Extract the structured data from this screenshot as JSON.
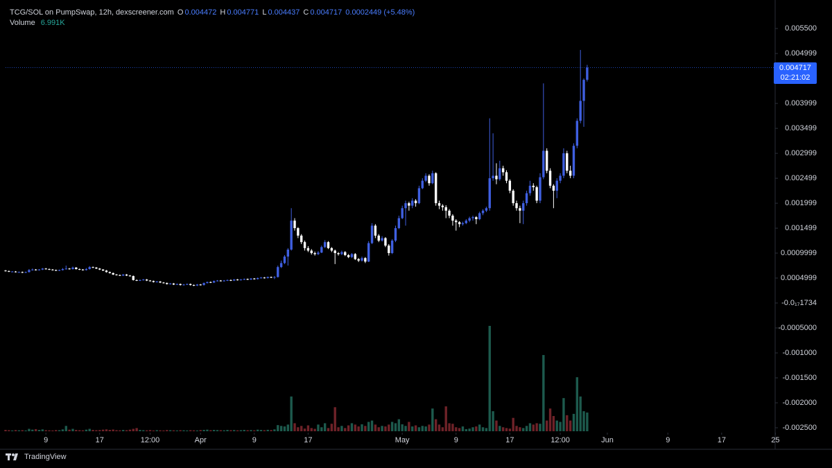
{
  "header": {
    "title": "TCG/SOL on PumpSwap, 12h, dexscreener.com",
    "o_label": "O",
    "open": "0.004472",
    "h_label": "H",
    "high": "0.004771",
    "l_label": "L",
    "low": "0.004437",
    "c_label": "C",
    "close": "0.004717",
    "change": "0.0002449 (+5.48%)",
    "volume_label": "Volume",
    "volume": "6.991K",
    "countdown": "02:21:02",
    "brand": "TradingView"
  },
  "chart_data": {
    "type": "candlestick",
    "up_color": "#3f5fe0",
    "down_color": "#ffffff",
    "volume_up_color": "#1d5a4d",
    "volume_down_color": "#6e2228",
    "xlim": [
      0,
      228.5
    ],
    "xticks": [
      {
        "value": 12,
        "label": "9"
      },
      {
        "value": 28,
        "label": "17"
      },
      {
        "value": 43,
        "label": "12:00"
      },
      {
        "value": 58,
        "label": "Apr"
      },
      {
        "value": 74,
        "label": "9"
      },
      {
        "value": 90,
        "label": "17"
      },
      {
        "value": 118,
        "label": "May"
      },
      {
        "value": 134,
        "label": "9"
      },
      {
        "value": 150,
        "label": "17"
      },
      {
        "value": 165,
        "label": "12:00"
      },
      {
        "value": 179,
        "label": "Jun"
      },
      {
        "value": 197,
        "label": "9"
      },
      {
        "value": 213,
        "label": "17"
      },
      {
        "value": 229,
        "label": "25"
      }
    ],
    "ylim": [
      -0.00257,
      0.00596
    ],
    "yticks": [
      {
        "value": 0.0055,
        "label": "0.005500"
      },
      0.004999,
      0.003999,
      0.003499,
      0.002999,
      0.002499,
      0.001999,
      0.001499,
      0.0009999,
      0.0004999,
      {
        "value": -1.734e-18,
        "label": "-0.0₁₇1734"
      },
      {
        "value": -0.0005,
        "label": "-0.0005000"
      },
      {
        "value": -0.001,
        "label": "-0.001000"
      },
      {
        "value": -0.0015,
        "label": "-0.001500"
      },
      {
        "value": -0.002,
        "label": "-0.002000"
      },
      {
        "value": -0.0025,
        "label": "-0.002500"
      }
    ],
    "candles": [
      [
        0.00065,
        0.00066,
        0.00063,
        0.00064
      ],
      [
        0.00064,
        0.00065,
        0.00062,
        0.00063
      ],
      [
        0.00063,
        0.00064,
        0.00062,
        0.00063
      ],
      [
        0.00063,
        0.00064,
        0.00061,
        0.00062
      ],
      [
        0.00062,
        0.00063,
        0.00061,
        0.00062
      ],
      [
        0.00062,
        0.00063,
        0.0006,
        0.00061
      ],
      [
        0.00061,
        0.00063,
        0.0006,
        0.00062
      ],
      [
        0.00062,
        0.00068,
        0.00061,
        0.00066
      ],
      [
        0.00066,
        0.00069,
        0.00065,
        0.00067
      ],
      [
        0.00067,
        0.00068,
        0.00065,
        0.00066
      ],
      [
        0.00066,
        0.00068,
        0.00065,
        0.00067
      ],
      [
        0.00067,
        0.0007,
        0.00066,
        0.00069
      ],
      [
        0.00069,
        0.0007,
        0.00067,
        0.00068
      ],
      [
        0.00068,
        0.00069,
        0.00066,
        0.00067
      ],
      [
        0.00067,
        0.00068,
        0.00065,
        0.00066
      ],
      [
        0.00066,
        0.00067,
        0.00064,
        0.00065
      ],
      [
        0.00065,
        0.00067,
        0.00064,
        0.00066
      ],
      [
        0.00066,
        0.0007,
        0.00065,
        0.00068
      ],
      [
        0.00068,
        0.00075,
        0.00067,
        0.00069
      ],
      [
        0.00069,
        0.0007,
        0.00067,
        0.00068
      ],
      [
        0.00068,
        0.00073,
        0.00067,
        0.00071
      ],
      [
        0.00071,
        0.00072,
        0.00067,
        0.00068
      ],
      [
        0.00068,
        0.00069,
        0.00066,
        0.00067
      ],
      [
        0.00067,
        0.00068,
        0.00065,
        0.00066
      ],
      [
        0.00066,
        0.0007,
        0.00065,
        0.00068
      ],
      [
        0.00068,
        0.00074,
        0.00067,
        0.00072
      ],
      [
        0.00072,
        0.00073,
        0.0007,
        0.00071
      ],
      [
        0.00071,
        0.00072,
        0.00068,
        0.00069
      ],
      [
        0.00069,
        0.0007,
        0.00066,
        0.00067
      ],
      [
        0.00067,
        0.00068,
        0.00064,
        0.00065
      ],
      [
        0.00065,
        0.00066,
        0.00061,
        0.00062
      ],
      [
        0.00062,
        0.00063,
        0.00059,
        0.0006
      ],
      [
        0.0006,
        0.00061,
        0.00056,
        0.00057
      ],
      [
        0.00057,
        0.00058,
        0.00055,
        0.00056
      ],
      [
        0.00056,
        0.00057,
        0.00054,
        0.00055
      ],
      [
        0.00055,
        0.00058,
        0.00054,
        0.00057
      ],
      [
        0.00057,
        0.00058,
        0.00054,
        0.00055
      ],
      [
        0.00055,
        0.00056,
        0.00053,
        0.00054
      ],
      [
        0.00054,
        0.00055,
        0.00045,
        0.00046
      ],
      [
        0.00046,
        0.00047,
        0.00044,
        0.00045
      ],
      [
        0.00045,
        0.00047,
        0.00044,
        0.00046
      ],
      [
        0.00046,
        0.00048,
        0.00045,
        0.00047
      ],
      [
        0.00047,
        0.00048,
        0.00044,
        0.00045
      ],
      [
        0.00045,
        0.00046,
        0.00043,
        0.00044
      ],
      [
        0.00044,
        0.00045,
        0.00041,
        0.00042
      ],
      [
        0.00042,
        0.00044,
        0.00041,
        0.00043
      ],
      [
        0.00043,
        0.00044,
        0.0004,
        0.00041
      ],
      [
        0.00041,
        0.00042,
        0.00039,
        0.0004
      ],
      [
        0.0004,
        0.00041,
        0.00037,
        0.00038
      ],
      [
        0.00038,
        0.0004,
        0.00037,
        0.00039
      ],
      [
        0.00039,
        0.0004,
        0.00036,
        0.00037
      ],
      [
        0.00037,
        0.00039,
        0.00036,
        0.00038
      ],
      [
        0.00038,
        0.00039,
        0.00035,
        0.00036
      ],
      [
        0.00036,
        0.00038,
        0.00035,
        0.00037
      ],
      [
        0.00037,
        0.00039,
        0.00036,
        0.00038
      ],
      [
        0.00038,
        0.00039,
        0.00035,
        0.00036
      ],
      [
        0.00036,
        0.00037,
        0.00034,
        0.00035
      ],
      [
        0.00035,
        0.00038,
        0.00034,
        0.00037
      ],
      [
        0.00037,
        0.00038,
        0.00035,
        0.00036
      ],
      [
        0.00036,
        0.00041,
        0.00035,
        0.0004
      ],
      [
        0.0004,
        0.00043,
        0.00039,
        0.00042
      ],
      [
        0.00042,
        0.00043,
        0.0004,
        0.00041
      ],
      [
        0.00041,
        0.00045,
        0.0004,
        0.00044
      ],
      [
        0.00044,
        0.00046,
        0.00043,
        0.00045
      ],
      [
        0.00045,
        0.00046,
        0.00043,
        0.00044
      ],
      [
        0.00044,
        0.00046,
        0.00043,
        0.00045
      ],
      [
        0.00045,
        0.00047,
        0.00044,
        0.00046
      ],
      [
        0.00046,
        0.00047,
        0.00044,
        0.00045
      ],
      [
        0.00045,
        0.00048,
        0.00044,
        0.00047
      ],
      [
        0.00047,
        0.00048,
        0.00045,
        0.00046
      ],
      [
        0.00046,
        0.00048,
        0.00045,
        0.00047
      ],
      [
        0.00047,
        0.00049,
        0.00046,
        0.00048
      ],
      [
        0.00048,
        0.00049,
        0.00046,
        0.00047
      ],
      [
        0.00047,
        0.0005,
        0.00046,
        0.00049
      ],
      [
        0.00049,
        0.0005,
        0.00047,
        0.00048
      ],
      [
        0.00048,
        0.00051,
        0.00047,
        0.0005
      ],
      [
        0.0005,
        0.00052,
        0.00049,
        0.00051
      ],
      [
        0.00051,
        0.00052,
        0.00049,
        0.0005
      ],
      [
        0.0005,
        0.00053,
        0.00049,
        0.00052
      ],
      [
        0.00052,
        0.00053,
        0.0005,
        0.00051
      ],
      [
        0.00051,
        0.00054,
        0.00048,
        0.00052
      ],
      [
        0.00052,
        0.00075,
        0.00051,
        0.00072
      ],
      [
        0.00072,
        0.00085,
        0.0007,
        0.0008
      ],
      [
        0.0008,
        0.00096,
        0.00078,
        0.00093
      ],
      [
        0.00093,
        0.0011,
        0.00075,
        0.00107
      ],
      [
        0.00107,
        0.0019,
        0.00105,
        0.00165
      ],
      [
        0.00165,
        0.0017,
        0.00145,
        0.0015
      ],
      [
        0.0015,
        0.00152,
        0.0013,
        0.00135
      ],
      [
        0.00135,
        0.00138,
        0.00118,
        0.00122
      ],
      [
        0.00122,
        0.00125,
        0.00105,
        0.0011
      ],
      [
        0.0011,
        0.00114,
        0.00102,
        0.00105
      ],
      [
        0.00105,
        0.00108,
        0.00097,
        0.001
      ],
      [
        0.001,
        0.00103,
        0.00095,
        0.00098
      ],
      [
        0.00098,
        0.00104,
        0.00096,
        0.00101
      ],
      [
        0.00101,
        0.00115,
        0.001,
        0.00112
      ],
      [
        0.00112,
        0.00126,
        0.0011,
        0.00122
      ],
      [
        0.00122,
        0.00124,
        0.00108,
        0.0011
      ],
      [
        0.0011,
        0.00112,
        0.00102,
        0.00105
      ],
      [
        0.00105,
        0.00107,
        0.00078,
        0.001
      ],
      [
        0.001,
        0.00102,
        0.00095,
        0.00098
      ],
      [
        0.00098,
        0.00105,
        0.00096,
        0.00102
      ],
      [
        0.00102,
        0.00104,
        0.00094,
        0.00096
      ],
      [
        0.00096,
        0.00098,
        0.0009,
        0.00092
      ],
      [
        0.00092,
        0.001,
        0.0009,
        0.00098
      ],
      [
        0.00098,
        0.001,
        0.00086,
        0.00088
      ],
      [
        0.00088,
        0.0009,
        0.00082,
        0.00085
      ],
      [
        0.00085,
        0.00093,
        0.00083,
        0.0009
      ],
      [
        0.0009,
        0.00092,
        0.0008,
        0.00083
      ],
      [
        0.00083,
        0.00124,
        0.00082,
        0.0012
      ],
      [
        0.0012,
        0.0016,
        0.00118,
        0.00155
      ],
      [
        0.00155,
        0.00158,
        0.0013,
        0.00135
      ],
      [
        0.00135,
        0.00138,
        0.00122,
        0.00125
      ],
      [
        0.00125,
        0.00134,
        0.00123,
        0.0013
      ],
      [
        0.0013,
        0.00132,
        0.00112,
        0.00115
      ],
      [
        0.00115,
        0.00118,
        0.00095,
        0.001
      ],
      [
        0.001,
        0.00128,
        0.00098,
        0.00125
      ],
      [
        0.00125,
        0.00155,
        0.00122,
        0.0015
      ],
      [
        0.0015,
        0.00175,
        0.00148,
        0.0017
      ],
      [
        0.0017,
        0.00195,
        0.00168,
        0.0019
      ],
      [
        0.0019,
        0.00205,
        0.00155,
        0.002
      ],
      [
        0.002,
        0.00203,
        0.00185,
        0.00195
      ],
      [
        0.00195,
        0.0021,
        0.0019,
        0.00205
      ],
      [
        0.00205,
        0.00208,
        0.00193,
        0.002
      ],
      [
        0.002,
        0.00235,
        0.00198,
        0.0023
      ],
      [
        0.0023,
        0.0025,
        0.00228,
        0.00245
      ],
      [
        0.00245,
        0.0026,
        0.00242,
        0.00255
      ],
      [
        0.00255,
        0.00258,
        0.00235,
        0.0024
      ],
      [
        0.0024,
        0.00265,
        0.00238,
        0.0026
      ],
      [
        0.0026,
        0.00262,
        0.00195,
        0.002
      ],
      [
        0.002,
        0.00205,
        0.00188,
        0.00195
      ],
      [
        0.00195,
        0.00198,
        0.00185,
        0.00192
      ],
      [
        0.00192,
        0.00196,
        0.0017,
        0.00185
      ],
      [
        0.00185,
        0.00188,
        0.0017,
        0.00175
      ],
      [
        0.00175,
        0.00178,
        0.00155,
        0.00165
      ],
      [
        0.00165,
        0.00168,
        0.00145,
        0.00162
      ],
      [
        0.00162,
        0.00164,
        0.00152,
        0.00158
      ],
      [
        0.00158,
        0.00163,
        0.00155,
        0.0016
      ],
      [
        0.0016,
        0.00168,
        0.00158,
        0.00165
      ],
      [
        0.00165,
        0.00173,
        0.00162,
        0.0017
      ],
      [
        0.0017,
        0.00175,
        0.00165,
        0.00172
      ],
      [
        0.00172,
        0.00174,
        0.00158,
        0.00168
      ],
      [
        0.00168,
        0.00183,
        0.00166,
        0.0018
      ],
      [
        0.0018,
        0.00188,
        0.00176,
        0.00185
      ],
      [
        0.00185,
        0.00193,
        0.00182,
        0.0019
      ],
      [
        0.0019,
        0.0037,
        0.00185,
        0.0025
      ],
      [
        0.0025,
        0.0034,
        0.00245,
        0.00255
      ],
      [
        0.00255,
        0.0028,
        0.00238,
        0.00248
      ],
      [
        0.00248,
        0.00285,
        0.00245,
        0.0027
      ],
      [
        0.0027,
        0.00275,
        0.00255,
        0.00262
      ],
      [
        0.00262,
        0.00266,
        0.0024,
        0.00245
      ],
      [
        0.00245,
        0.00248,
        0.0022,
        0.00225
      ],
      [
        0.00225,
        0.00228,
        0.00195,
        0.002
      ],
      [
        0.002,
        0.00205,
        0.00185,
        0.0019
      ],
      [
        0.0019,
        0.00195,
        0.0016,
        0.00185
      ],
      [
        0.00185,
        0.00205,
        0.00158,
        0.002
      ],
      [
        0.002,
        0.00225,
        0.00195,
        0.0022
      ],
      [
        0.0022,
        0.00245,
        0.00215,
        0.00235
      ],
      [
        0.00235,
        0.0024,
        0.00225,
        0.00232
      ],
      [
        0.00232,
        0.00235,
        0.002,
        0.00205
      ],
      [
        0.00205,
        0.0026,
        0.002,
        0.00252
      ],
      [
        0.00252,
        0.0044,
        0.00248,
        0.00305
      ],
      [
        0.00305,
        0.0031,
        0.0026,
        0.00265
      ],
      [
        0.00265,
        0.0027,
        0.0023,
        0.00235
      ],
      [
        0.00235,
        0.00238,
        0.0019,
        0.00225
      ],
      [
        0.00225,
        0.0025,
        0.0021,
        0.00245
      ],
      [
        0.00245,
        0.0026,
        0.0024,
        0.00255
      ],
      [
        0.00255,
        0.0031,
        0.0025,
        0.003
      ],
      [
        0.003,
        0.00305,
        0.0026,
        0.00265
      ],
      [
        0.00265,
        0.00275,
        0.0025,
        0.00255
      ],
      [
        0.00255,
        0.0032,
        0.0025,
        0.00315
      ],
      [
        0.00315,
        0.0037,
        0.0031,
        0.00365
      ],
      [
        0.00365,
        0.00507,
        0.0036,
        0.00405
      ],
      [
        0.00405,
        0.0045,
        0.00353,
        0.004472
      ],
      [
        0.004472,
        0.004771,
        0.004437,
        0.004717
      ]
    ],
    "volume": [
      500,
      400,
      300,
      450,
      350,
      400,
      300,
      900,
      600,
      800,
      500,
      700,
      400,
      350,
      300,
      450,
      400,
      700,
      2000,
      600,
      900,
      500,
      400,
      350,
      600,
      900,
      500,
      400,
      450,
      600,
      700,
      500,
      650,
      400,
      350,
      500,
      400,
      600,
      900,
      1200,
      500,
      400,
      350,
      450,
      300,
      400,
      350,
      300,
      450,
      400,
      350,
      300,
      400,
      350,
      300,
      400,
      350,
      300,
      450,
      500,
      600,
      400,
      500,
      450,
      400,
      350,
      500,
      400,
      450,
      350,
      400,
      500,
      400,
      450,
      350,
      600,
      500,
      400,
      550,
      450,
      700,
      2300,
      2000,
      1800,
      2500,
      13000,
      3000,
      1500,
      2000,
      1000,
      2200,
      1200,
      900,
      2500,
      1500,
      3000,
      1200,
      2800,
      9000,
      1500,
      2000,
      1200,
      2200,
      3000,
      2500,
      1800,
      2600,
      2000,
      3500,
      4000,
      2500,
      1500,
      2000,
      1800,
      2500,
      3500,
      3000,
      4500,
      2600,
      2000,
      3500,
      1800,
      2200,
      1500,
      2000,
      1800,
      2500,
      8500,
      4500,
      2500,
      1500,
      9300,
      3000,
      2800,
      1500,
      1200,
      1800,
      800,
      1000,
      1500,
      1800,
      2500,
      1500,
      1200,
      39400,
      7500,
      4000,
      2000,
      1500,
      1200,
      1000,
      5000,
      2000,
      1500,
      1200,
      2000,
      3000,
      2500,
      3000,
      2800,
      28500,
      4000,
      8500,
      5700,
      4000,
      3500,
      12400,
      6000,
      4000,
      6500,
      20200,
      13000,
      7500,
      6991
    ]
  }
}
